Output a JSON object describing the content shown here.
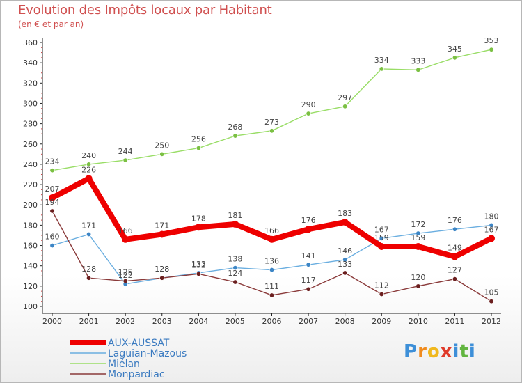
{
  "title": "Evolution des Impôts locaux par Habitant",
  "subtitle": "(en € et par an)",
  "logo": {
    "letters": [
      "P",
      "r",
      "o",
      "x",
      "i",
      "t",
      "i"
    ],
    "colors": [
      "#3d8fd8",
      "#f08b1e",
      "#f0b81e",
      "#e03a2a",
      "#3d8fd8",
      "#62b540",
      "#3d8fd8"
    ]
  },
  "chart_data": {
    "type": "line",
    "title": "Evolution des Impôts locaux par Habitant",
    "ylabel": "(en € et par an)",
    "xlabel": "",
    "ylim": [
      100,
      360
    ],
    "yticks": [
      100,
      120,
      140,
      160,
      180,
      200,
      220,
      240,
      260,
      280,
      300,
      320,
      340,
      360
    ],
    "categories": [
      "2000",
      "2001",
      "2002",
      "2003",
      "2004",
      "2005",
      "2006",
      "2007",
      "2008",
      "2009",
      "2010",
      "2011",
      "2012"
    ],
    "grid": false,
    "legend_position": "bottom-left",
    "series": [
      {
        "name": "Miélan",
        "color": "#99dd66",
        "marker": "#7bc043",
        "emphasis": false,
        "values": [
          234,
          240,
          244,
          250,
          256,
          268,
          273,
          290,
          297,
          334,
          333,
          345,
          353
        ]
      },
      {
        "name": "Laguian-Mazous",
        "color": "#6aaee0",
        "marker": "#3d86c6",
        "emphasis": false,
        "values": [
          160,
          171,
          122,
          128,
          133,
          138,
          136,
          141,
          146,
          167,
          172,
          176,
          180
        ]
      },
      {
        "name": "Monpardiac",
        "color": "#8a3a3a",
        "marker": "#6b1f1f",
        "emphasis": false,
        "values": [
          194,
          128,
          125,
          128,
          132,
          124,
          111,
          117,
          133,
          112,
          120,
          127,
          105
        ]
      },
      {
        "name": "AUX-AUSSAT",
        "color": "#ee0000",
        "marker": "#ee0000",
        "emphasis": true,
        "values": [
          207,
          226,
          166,
          171,
          178,
          181,
          166,
          176,
          183,
          159,
          159,
          149,
          167
        ]
      }
    ],
    "legend_order": [
      "AUX-AUSSAT",
      "Laguian-Mazous",
      "Miélan",
      "Monpardiac"
    ]
  }
}
